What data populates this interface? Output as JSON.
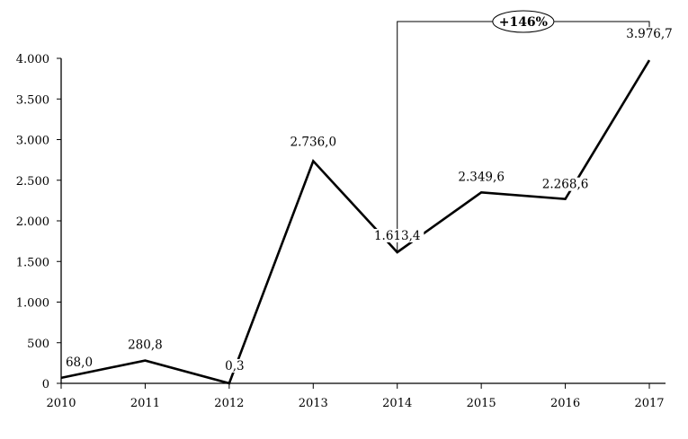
{
  "chart_data": {
    "type": "line",
    "title": "",
    "xlabel": "",
    "ylabel": "",
    "x": [
      "2010",
      "2011",
      "2012",
      "2013",
      "2014",
      "2015",
      "2016",
      "2017"
    ],
    "series": [
      {
        "values": [
          68.0,
          280.8,
          0.3,
          2736.0,
          1613.4,
          2349.6,
          2268.6,
          3976.7
        ],
        "labels": [
          "68,0",
          "280,8",
          "0,3",
          "2.736,0",
          "1.613,4",
          "2.349,6",
          "2.268,6",
          "3.976,7"
        ]
      }
    ],
    "ylim": [
      0,
      4000
    ],
    "yticks": [
      0,
      500,
      1000,
      1500,
      2000,
      2500,
      3000,
      3500,
      4000
    ],
    "ytick_labels": [
      "0",
      "500",
      "1.000",
      "1.500",
      "2.000",
      "2.500",
      "3.000",
      "3.500",
      "4.000"
    ],
    "grid": false,
    "line_color": "#000000",
    "annotation": {
      "text": "+146%",
      "from": "2014",
      "to": "2017"
    }
  }
}
